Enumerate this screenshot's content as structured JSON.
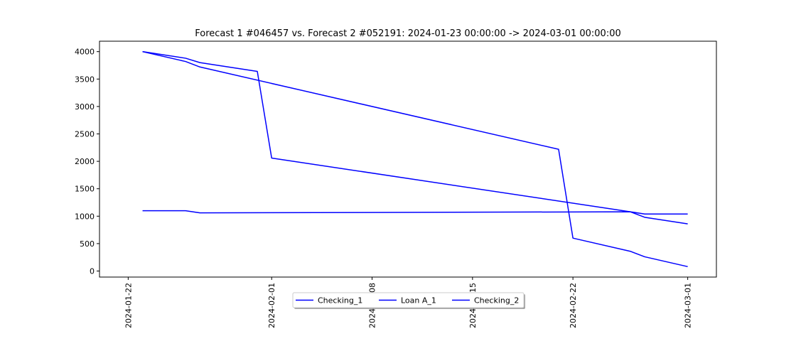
{
  "chart_data": {
    "type": "line",
    "title": "Forecast 1 #046457 vs. Forecast 2 #052191: 2024-01-23 00:00:00 -> 2024-03-01 00:00:00",
    "xlabel": "",
    "ylabel": "",
    "x_type": "date",
    "xlim": [
      "2024-01-20",
      "2024-03-03"
    ],
    "ylim": [
      -110,
      4190
    ],
    "x_ticks": [
      "2024-01-22",
      "2024-02-01",
      "2024-02-08",
      "2024-02-15",
      "2024-02-22",
      "2024-03-01"
    ],
    "x_tick_labels": [
      "2024-01-22",
      "2024-02-01",
      "2024-02-08",
      "2024-02-15",
      "2024-02-22",
      "2024-03-01"
    ],
    "y_ticks": [
      0,
      500,
      1000,
      1500,
      2000,
      2500,
      3000,
      3500,
      4000
    ],
    "y_tick_labels": [
      "0",
      "500",
      "1000",
      "1500",
      "2000",
      "2500",
      "3000",
      "3500",
      "4000"
    ],
    "grid": false,
    "legend_position": "bottom-center",
    "series": [
      {
        "name": "Checking_1",
        "color": "#0000ff",
        "x": [
          "2024-01-23",
          "2024-01-26",
          "2024-01-27",
          "2024-01-31",
          "2024-02-01",
          "2024-02-26",
          "2024-02-27",
          "2024-03-01"
        ],
        "y": [
          4000,
          3880,
          3800,
          3640,
          2060,
          1080,
          980,
          860
        ]
      },
      {
        "name": "Loan A_1",
        "color": "#0000ff",
        "x": [
          "2024-01-23",
          "2024-01-26",
          "2024-01-27",
          "2024-02-21",
          "2024-02-22",
          "2024-02-26",
          "2024-02-27",
          "2024-03-01"
        ],
        "y": [
          4000,
          3820,
          3720,
          2220,
          600,
          360,
          260,
          80
        ]
      },
      {
        "name": "Checking_2",
        "color": "#0000ff",
        "x": [
          "2024-01-23",
          "2024-01-26",
          "2024-01-27",
          "2024-02-26",
          "2024-02-27",
          "2024-03-01"
        ],
        "y": [
          1100,
          1100,
          1060,
          1080,
          1040,
          1040
        ]
      }
    ]
  }
}
